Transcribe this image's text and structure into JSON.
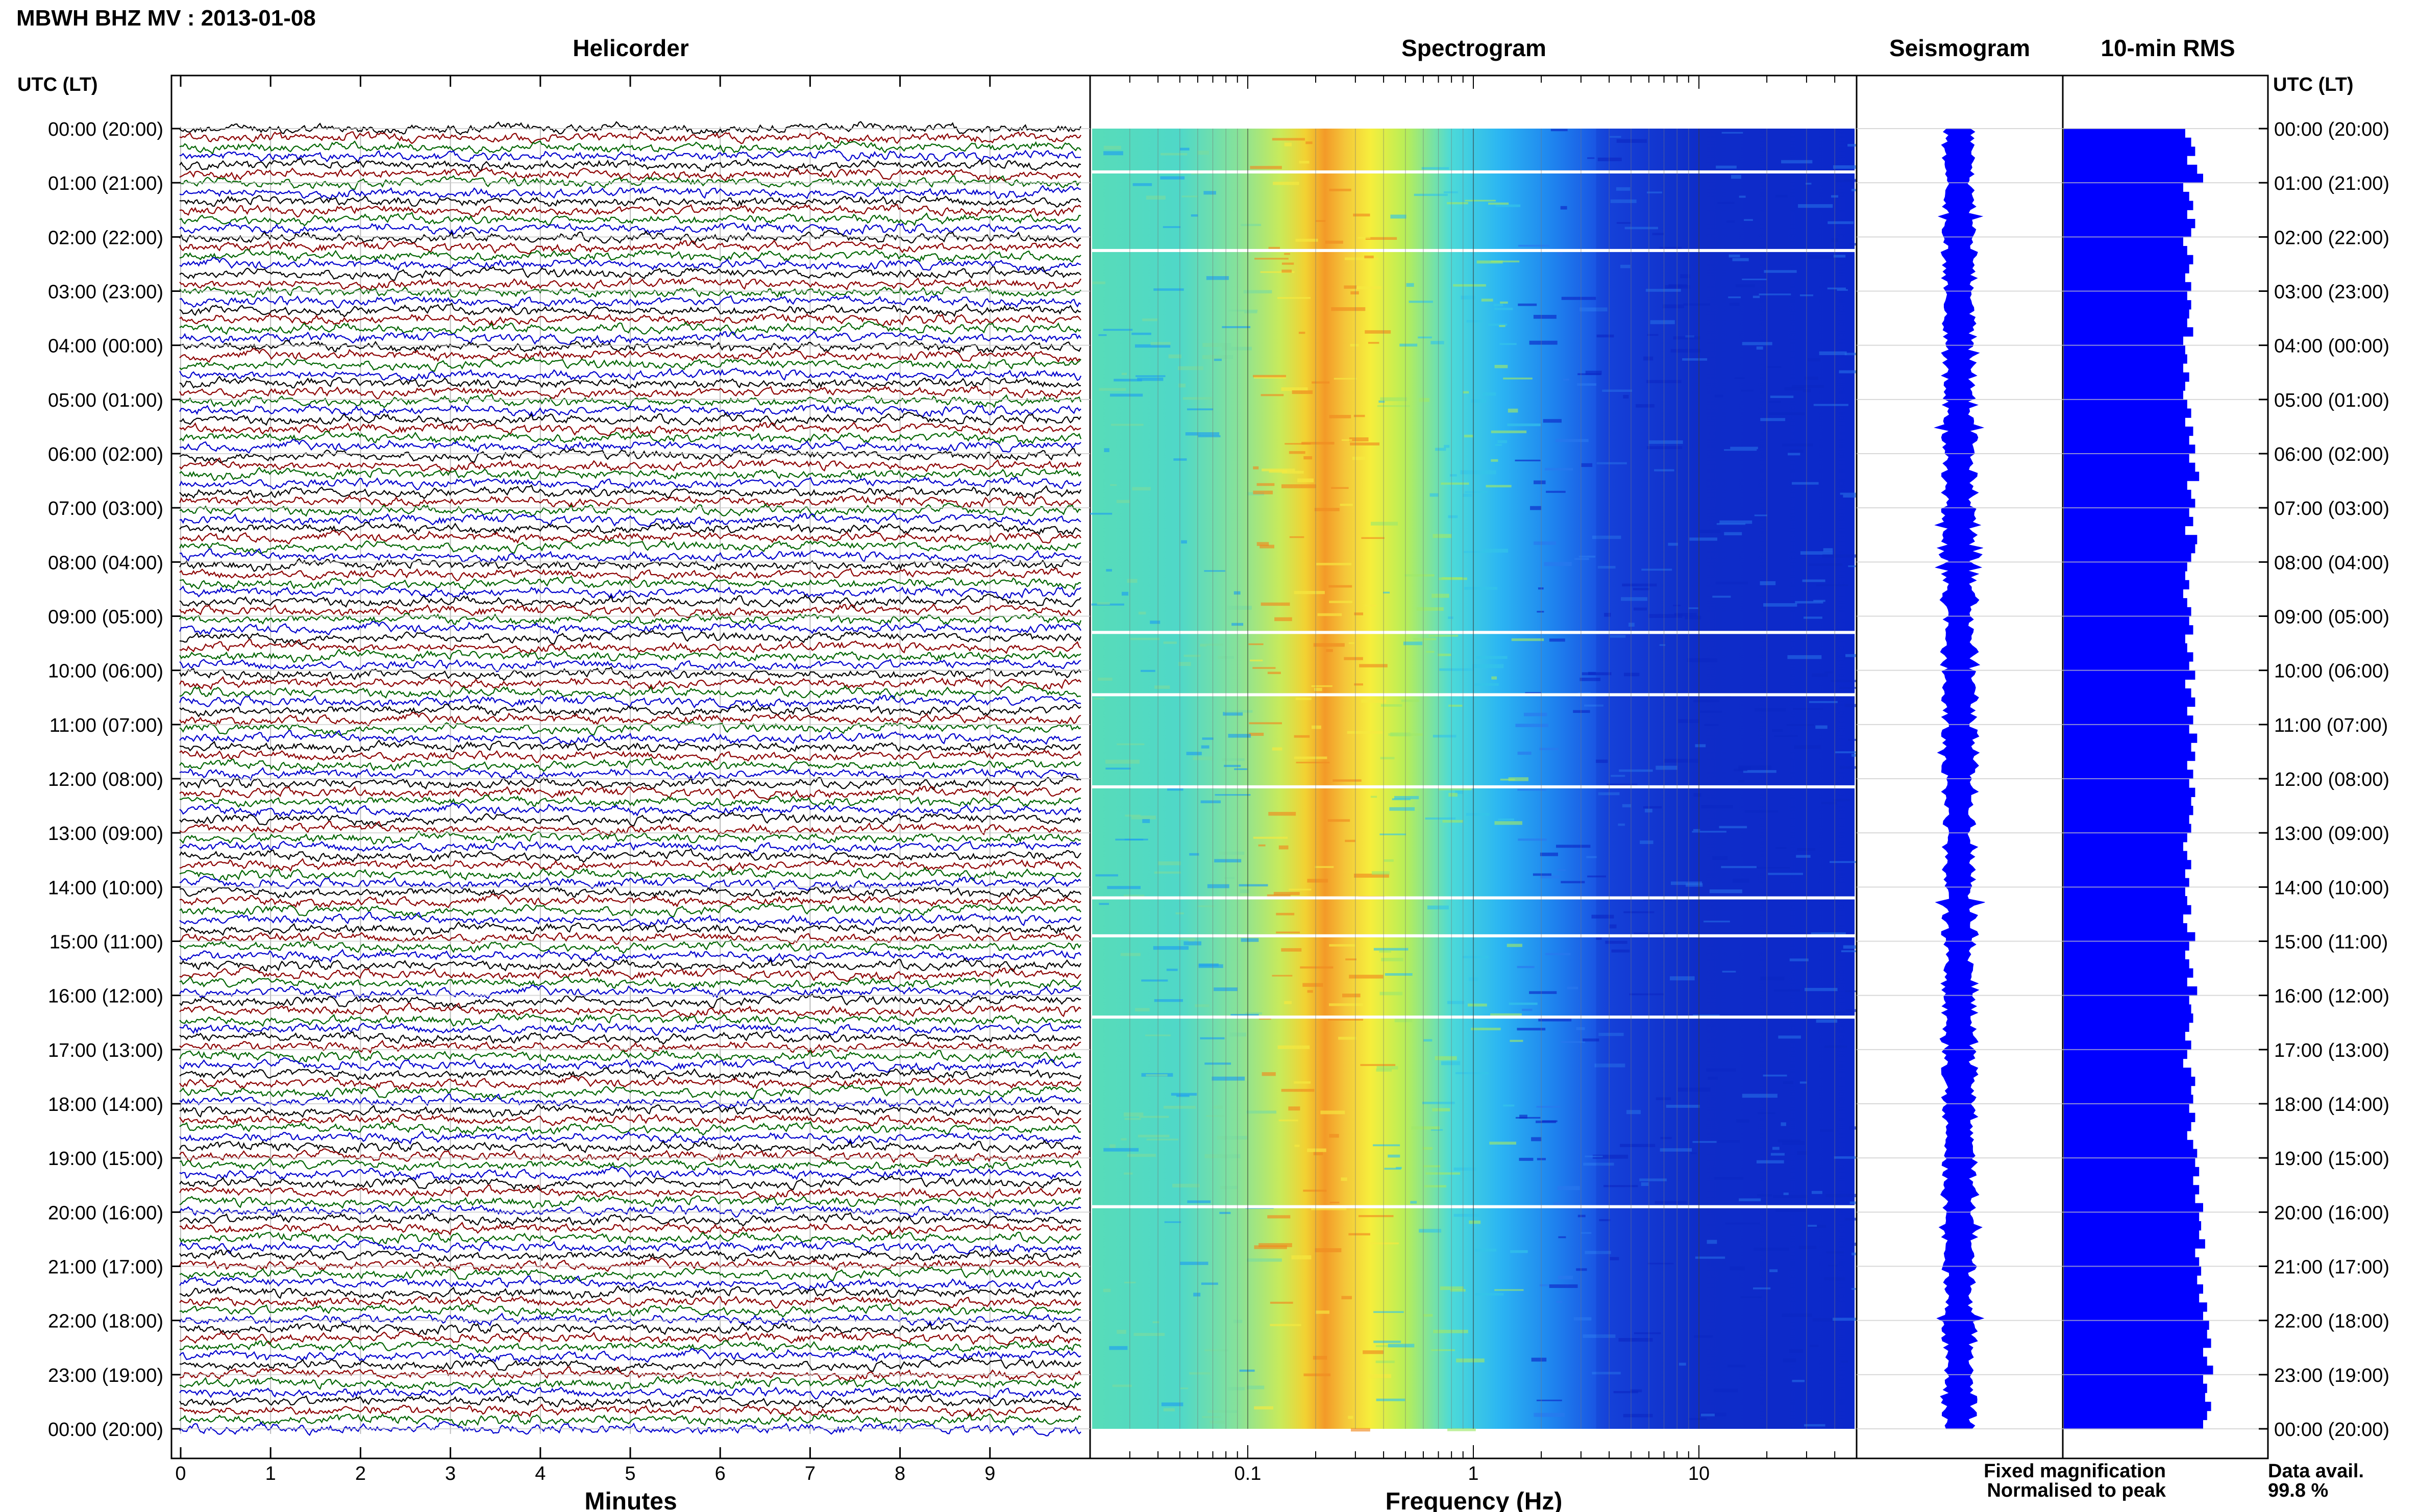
{
  "chart_data": {
    "type": "helicorder-spectrogram",
    "title": "MBWH BHZ MV : 2013-01-08",
    "time_axis_label": "UTC (LT)",
    "hour_labels": [
      "00:00 (20:00)",
      "01:00 (21:00)",
      "02:00 (22:00)",
      "03:00 (23:00)",
      "04:00 (00:00)",
      "05:00 (01:00)",
      "06:00 (02:00)",
      "07:00 (03:00)",
      "08:00 (04:00)",
      "09:00 (05:00)",
      "10:00 (06:00)",
      "11:00 (07:00)",
      "12:00 (08:00)",
      "13:00 (09:00)",
      "14:00 (10:00)",
      "15:00 (11:00)",
      "16:00 (12:00)",
      "17:00 (13:00)",
      "18:00 (14:00)",
      "19:00 (15:00)",
      "20:00 (16:00)",
      "21:00 (17:00)",
      "22:00 (18:00)",
      "23:00 (19:00)",
      "00:00 (20:00)"
    ],
    "panels": {
      "helicorder": {
        "title": "Helicorder",
        "xlabel": "Minutes",
        "xticks": [
          "0",
          "1",
          "2",
          "3",
          "4",
          "5",
          "6",
          "7",
          "8",
          "9"
        ],
        "xlim": [
          0,
          10
        ],
        "rows": 144,
        "trace_colors": [
          "#000000",
          "#8b0000",
          "#006400",
          "#0000cd"
        ]
      },
      "spectrogram": {
        "title": "Spectrogram",
        "xlabel": "Frequency (Hz)",
        "xscale": "log",
        "xticks": [
          "0.1",
          "1",
          "10"
        ],
        "xlim": [
          0.02,
          50
        ],
        "peak_frequency_hz": 0.22,
        "gap_hours": [
          0.8,
          2.25,
          9.3,
          10.45,
          12.15,
          14.2,
          14.9,
          16.4,
          19.9
        ]
      },
      "seismogram": {
        "title": "Seismogram",
        "color": "#0000ff"
      },
      "rms": {
        "title": "10-min RMS",
        "color": "#0000ff",
        "values": [
          0.61,
          0.64,
          0.66,
          0.62,
          0.67,
          0.7,
          0.6,
          0.63,
          0.65,
          0.62,
          0.66,
          0.64,
          0.6,
          0.62,
          0.65,
          0.63,
          0.61,
          0.64,
          0.62,
          0.64,
          0.63,
          0.62,
          0.65,
          0.6,
          0.61,
          0.62,
          0.6,
          0.63,
          0.61,
          0.6,
          0.62,
          0.64,
          0.61,
          0.65,
          0.63,
          0.66,
          0.63,
          0.66,
          0.68,
          0.62,
          0.64,
          0.66,
          0.63,
          0.65,
          0.61,
          0.67,
          0.66,
          0.64,
          0.62,
          0.61,
          0.63,
          0.6,
          0.62,
          0.64,
          0.63,
          0.65,
          0.61,
          0.62,
          0.65,
          0.63,
          0.66,
          0.61,
          0.64,
          0.66,
          0.62,
          0.65,
          0.63,
          0.67,
          0.64,
          0.66,
          0.62,
          0.65,
          0.63,
          0.66,
          0.64,
          0.65,
          0.63,
          0.64,
          0.62,
          0.6,
          0.62,
          0.64,
          0.61,
          0.63,
          0.61,
          0.62,
          0.64,
          0.6,
          0.62,
          0.66,
          0.63,
          0.61,
          0.63,
          0.65,
          0.62,
          0.67,
          0.63,
          0.64,
          0.65,
          0.63,
          0.61,
          0.64,
          0.62,
          0.6,
          0.64,
          0.66,
          0.64,
          0.65,
          0.63,
          0.66,
          0.64,
          0.62,
          0.65,
          0.67,
          0.66,
          0.68,
          0.65,
          0.68,
          0.66,
          0.7,
          0.68,
          0.69,
          0.68,
          0.71,
          0.66,
          0.68,
          0.69,
          0.67,
          0.7,
          0.68,
          0.72,
          0.7,
          0.73,
          0.72,
          0.74,
          0.7,
          0.72,
          0.75,
          0.7,
          0.72,
          0.71,
          0.74,
          0.72,
          0.7
        ]
      }
    },
    "legend": {
      "fixed": "Fixed magnification",
      "normalised": "Normalised to peak",
      "fixed_color": "#0000ff",
      "normalised_color": "#ff0000"
    },
    "availability": {
      "label": "Data avail.",
      "value": "99.8 %"
    }
  }
}
